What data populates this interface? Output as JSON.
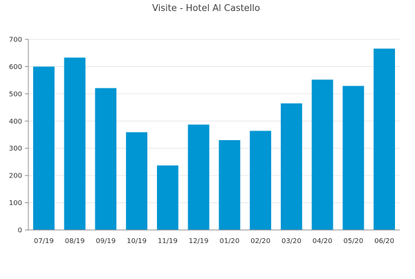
{
  "chart_data": {
    "type": "bar",
    "title": "Visite - Hotel Al Castello",
    "xlabel": "",
    "ylabel": "",
    "categories": [
      "07/19",
      "08/19",
      "09/19",
      "10/19",
      "11/19",
      "12/19",
      "01/20",
      "02/20",
      "03/20",
      "04/20",
      "05/20",
      "06/20"
    ],
    "values": [
      600,
      633,
      521,
      359,
      237,
      387,
      330,
      364,
      465,
      552,
      529,
      666
    ],
    "ylim": [
      0,
      700
    ],
    "yticks": [
      0,
      100,
      200,
      300,
      400,
      500,
      600,
      700
    ],
    "grid": true,
    "bar_color": "#0095d3"
  }
}
